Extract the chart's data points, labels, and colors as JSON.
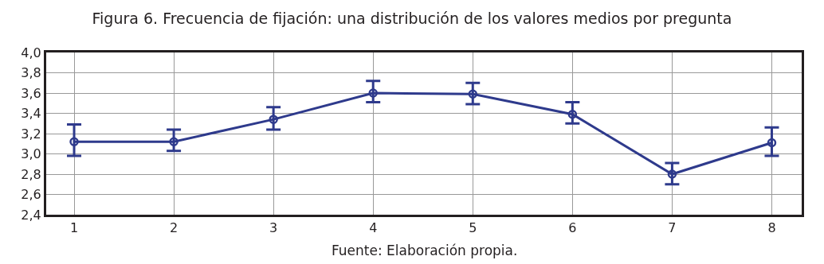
{
  "chart_data": {
    "type": "line",
    "title": "Figura 6. Frecuencia de fijación: una distribución de los valores medios por pregunta",
    "categories": [
      "1",
      "2",
      "3",
      "4",
      "5",
      "6",
      "7",
      "8"
    ],
    "series": [
      {
        "color": "#2e3a8c",
        "values": [
          3.12,
          3.12,
          3.34,
          3.6,
          3.59,
          3.39,
          2.8,
          3.11
        ],
        "errors": [
          [
            2.98,
            3.29
          ],
          [
            3.03,
            3.24
          ],
          [
            3.24,
            3.46
          ],
          [
            3.51,
            3.72
          ],
          [
            3.49,
            3.7
          ],
          [
            3.3,
            3.51
          ],
          [
            2.7,
            2.91
          ],
          [
            2.98,
            3.26
          ]
        ]
      }
    ],
    "ylim": [
      2.4,
      4.0
    ],
    "yticks": [
      {
        "value": 2.4,
        "label": "2,4"
      },
      {
        "value": 2.6,
        "label": "2,6"
      },
      {
        "value": 2.8,
        "label": "2,8"
      },
      {
        "value": 3.0,
        "label": "3,0"
      },
      {
        "value": 3.2,
        "label": "3,2"
      },
      {
        "value": 3.4,
        "label": "3,4"
      },
      {
        "value": 3.6,
        "label": "3,6"
      },
      {
        "value": 3.8,
        "label": "3,8"
      },
      {
        "value": 4.0,
        "label": "4,0"
      }
    ],
    "grid": true,
    "marker": "circle",
    "line_style": "solid",
    "annotations": [
      "Fuente: Elaboración propia."
    ]
  }
}
